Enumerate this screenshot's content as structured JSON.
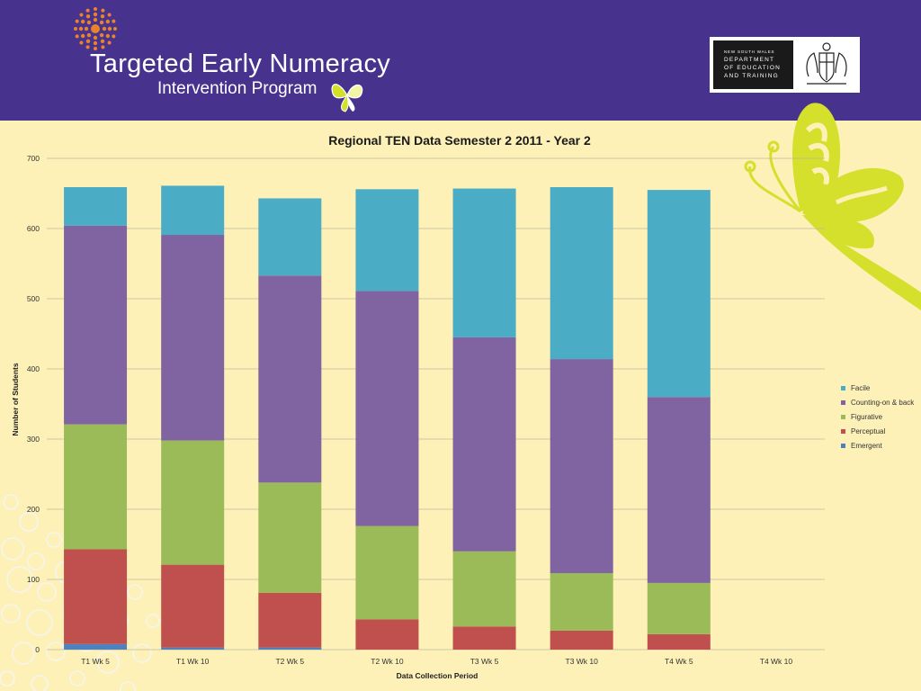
{
  "header": {
    "title": "Targeted Early Numeracy",
    "subtitle": "Intervention Program",
    "department": {
      "line0": "NEW SOUTH WALES",
      "line1": "DEPARTMENT",
      "line2": "OF EDUCATION",
      "line3": "AND TRAINING"
    }
  },
  "colors": {
    "header_bg": "#47338e",
    "page_bg": "#fdf1b8",
    "accent_green": "#d4e02c",
    "logo_orange": "#e8832a"
  },
  "chart_data": {
    "type": "bar",
    "stacked": true,
    "title": "Regional TEN Data Semester 2 2011 - Year 2",
    "xlabel": "Data Collection Period",
    "ylabel": "Number of Students",
    "ylim": [
      0,
      700
    ],
    "yticks": [
      0,
      100,
      200,
      300,
      400,
      500,
      600,
      700
    ],
    "grid": true,
    "legend_position": "right",
    "categories": [
      "T1 Wk 5",
      "T1 Wk 10",
      "T2 Wk 5",
      "T2 Wk 10",
      "T3 Wk 5",
      "T3 Wk 10",
      "T4 Wk 5",
      "T4 Wk 10"
    ],
    "series": [
      {
        "name": "Emergent",
        "color": "#4f81bd",
        "values": [
          8,
          3,
          3,
          0,
          0,
          0,
          0,
          0
        ]
      },
      {
        "name": "Perceptual",
        "color": "#c0504d",
        "values": [
          135,
          118,
          78,
          43,
          33,
          27,
          22,
          0
        ]
      },
      {
        "name": "Figurative",
        "color": "#9bbb59",
        "values": [
          178,
          177,
          157,
          133,
          107,
          82,
          73,
          0
        ]
      },
      {
        "name": "Counting-on & back",
        "color": "#8064a2",
        "values": [
          283,
          293,
          295,
          335,
          305,
          305,
          265,
          0
        ]
      },
      {
        "name": "Facile",
        "color": "#4bacc6",
        "values": [
          55,
          70,
          110,
          145,
          212,
          245,
          295,
          0
        ]
      }
    ]
  }
}
